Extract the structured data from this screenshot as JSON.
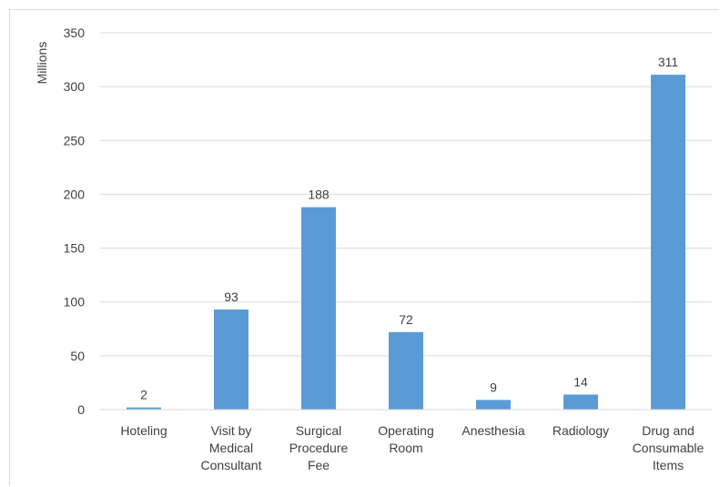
{
  "chart_data": {
    "type": "bar",
    "ylabel": "Millions",
    "ylim": [
      0,
      350
    ],
    "yticks": [
      0,
      50,
      100,
      150,
      200,
      250,
      300,
      350
    ],
    "grid": true,
    "bar_color": "#5b9bd5",
    "grid_color": "#d9d9d9",
    "categories": [
      [
        "Hoteling"
      ],
      [
        "Visit by",
        "Medical",
        "Consultant"
      ],
      [
        "Surgical",
        "Procedure",
        "Fee"
      ],
      [
        "Operating",
        "Room"
      ],
      [
        "Anesthesia"
      ],
      [
        "Radiology"
      ],
      [
        "Drug and",
        "Consumable",
        "Items"
      ]
    ],
    "values": [
      2,
      93,
      188,
      72,
      9,
      14,
      311
    ]
  }
}
